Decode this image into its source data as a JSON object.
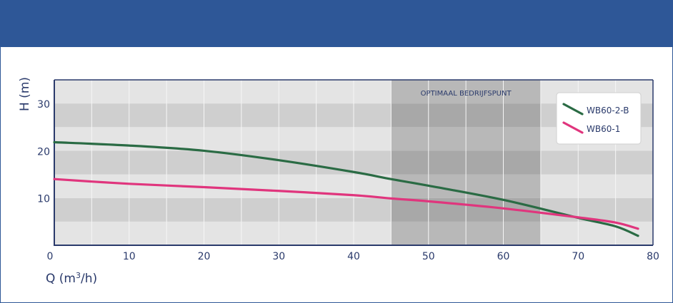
{
  "chart_data": {
    "type": "line",
    "title": "",
    "xlabel": "Q (m",
    "xlabel_sup": "3",
    "xlabel_tail": "/h)",
    "ylabel": "H (m)",
    "xlim": [
      0,
      80
    ],
    "ylim": [
      0,
      35
    ],
    "x_ticks": [
      0,
      10,
      20,
      30,
      40,
      50,
      60,
      70,
      80
    ],
    "y_ticks": [
      10,
      20,
      30
    ],
    "grid": true,
    "legend_position": "top-right",
    "highlight_region": {
      "label": "OPTIMAAL BEDRIJFSPUNT",
      "x_range": [
        45,
        65
      ]
    },
    "series": [
      {
        "name": "WB60-2-B",
        "color": "#2a6b44",
        "points": [
          [
            0,
            21.8
          ],
          [
            10,
            21.1
          ],
          [
            20,
            20.0
          ],
          [
            30,
            18.0
          ],
          [
            40,
            15.5
          ],
          [
            45,
            14.0
          ],
          [
            50,
            12.6
          ],
          [
            60,
            9.6
          ],
          [
            70,
            5.8
          ],
          [
            75,
            4.0
          ],
          [
            78,
            2.0
          ]
        ]
      },
      {
        "name": "WB60-1",
        "color": "#e0357d",
        "points": [
          [
            0,
            14.0
          ],
          [
            10,
            13.0
          ],
          [
            20,
            12.3
          ],
          [
            30,
            11.5
          ],
          [
            40,
            10.6
          ],
          [
            45,
            9.9
          ],
          [
            50,
            9.3
          ],
          [
            60,
            7.8
          ],
          [
            70,
            5.9
          ],
          [
            75,
            4.8
          ],
          [
            78,
            3.5
          ]
        ]
      }
    ]
  }
}
